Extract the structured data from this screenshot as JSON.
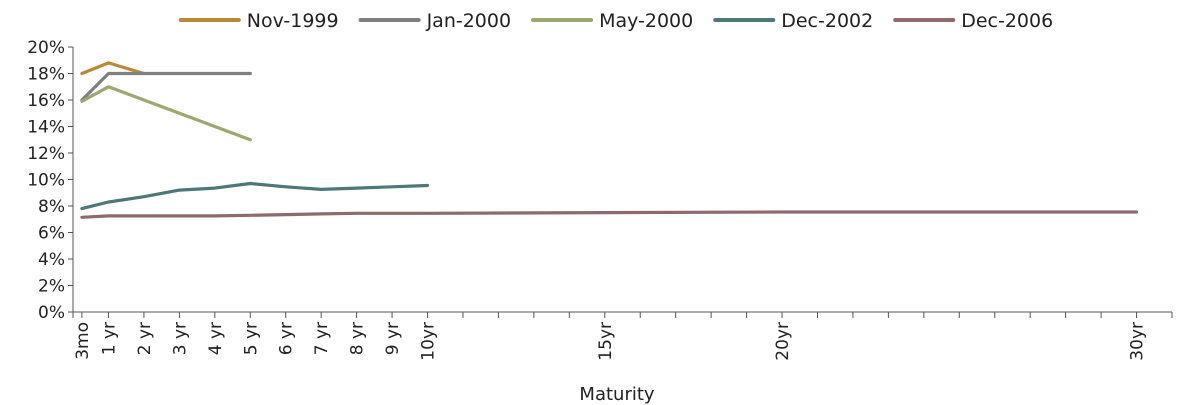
{
  "chart_data": {
    "type": "line",
    "xlabel": "Maturity",
    "ylabel": "",
    "ylim": [
      0,
      20
    ],
    "y_ticks": [
      "0%",
      "2%",
      "4%",
      "6%",
      "8%",
      "10%",
      "12%",
      "14%",
      "16%",
      "18%",
      "20%"
    ],
    "x_tick_labels": [
      "3mo",
      "1 yr",
      "2 yr",
      "3 yr",
      "4 yr",
      "5 yr",
      "6 yr",
      "7 yr",
      "8 yr",
      "9 yr",
      "10yr",
      "15yr",
      "20yr",
      "30yr"
    ],
    "x_tick_maturities": [
      0.25,
      1,
      2,
      3,
      4,
      5,
      6,
      7,
      8,
      9,
      10,
      15,
      20,
      30
    ],
    "x_minor_ticks_every": 1,
    "xlim": [
      0,
      31
    ],
    "grid": false,
    "legend_position": "top",
    "series": [
      {
        "name": "Nov-1999",
        "color": "#B8893A",
        "x": [
          0.25,
          1,
          2
        ],
        "y": [
          18.0,
          18.8,
          18.0
        ]
      },
      {
        "name": "Jan-2000",
        "color": "#7F7F7F",
        "x": [
          0.25,
          1,
          2,
          3,
          4,
          5
        ],
        "y": [
          16.0,
          18.0,
          18.0,
          18.0,
          18.0,
          18.0
        ]
      },
      {
        "name": "May-2000",
        "color": "#9BA870",
        "x": [
          0.25,
          1,
          2,
          3,
          4,
          5
        ],
        "y": [
          15.9,
          17.0,
          16.0,
          15.0,
          14.0,
          13.0
        ]
      },
      {
        "name": "Dec-2002",
        "color": "#4E7877",
        "x": [
          0.25,
          1,
          2,
          3,
          4,
          5,
          6,
          7,
          8,
          9,
          10
        ],
        "y": [
          7.8,
          8.3,
          8.7,
          9.2,
          9.35,
          9.7,
          9.45,
          9.25,
          9.35,
          9.45,
          9.55
        ]
      },
      {
        "name": "Dec-2006",
        "color": "#8C6A6E",
        "x": [
          0.25,
          1,
          2,
          3,
          4,
          5,
          6,
          7,
          8,
          9,
          10,
          15,
          20,
          30
        ],
        "y": [
          7.15,
          7.25,
          7.25,
          7.25,
          7.25,
          7.3,
          7.35,
          7.4,
          7.45,
          7.45,
          7.45,
          7.5,
          7.55,
          7.55
        ]
      }
    ]
  }
}
